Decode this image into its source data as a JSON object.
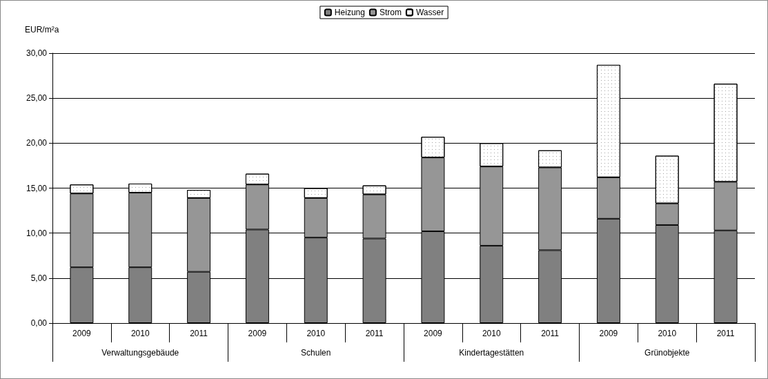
{
  "chart_data": {
    "type": "bar",
    "stacked": true,
    "ylabel": "EUR/m²a",
    "categories": [
      "2009",
      "2010",
      "2011",
      "2009",
      "2010",
      "2011",
      "2009",
      "2010",
      "2011",
      "2009",
      "2010",
      "2011"
    ],
    "annotations": [
      "Verwaltungsgebäude",
      "Schulen",
      "Kindertagestätten",
      "Grünobjekte"
    ],
    "series": [
      {
        "name": "Heizung",
        "color": "#808080",
        "values": [
          6.2,
          6.2,
          5.7,
          10.4,
          9.5,
          9.4,
          10.2,
          8.6,
          8.1,
          11.6,
          10.9,
          10.3
        ]
      },
      {
        "name": "Strom",
        "color": "#969696",
        "values": [
          8.2,
          8.3,
          8.2,
          5.0,
          4.4,
          4.9,
          8.2,
          8.8,
          9.2,
          4.6,
          2.4,
          5.4
        ]
      },
      {
        "name": "Wasser",
        "color": "#ffffff",
        "values": [
          1.0,
          1.0,
          0.9,
          1.2,
          1.1,
          1.0,
          2.3,
          2.6,
          1.9,
          12.5,
          5.3,
          10.9
        ]
      }
    ],
    "ylim": [
      0,
      30
    ],
    "yticks": [
      {
        "value": 0,
        "label": "0,00"
      },
      {
        "value": 5,
        "label": "5,00"
      },
      {
        "value": 10,
        "label": "10,00"
      },
      {
        "value": 15,
        "label": "15,00"
      },
      {
        "value": 20,
        "label": "20,00"
      },
      {
        "value": 25,
        "label": "25,00"
      },
      {
        "value": 30,
        "label": "30,00"
      }
    ],
    "grid": "y",
    "legend": "top"
  }
}
